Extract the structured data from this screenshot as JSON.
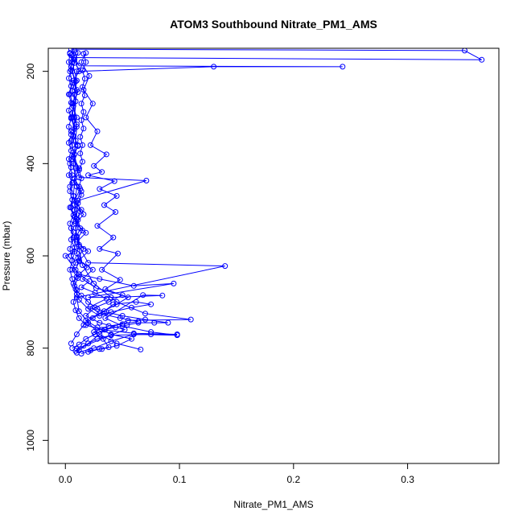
{
  "chart_data": {
    "type": "scatter",
    "title": "ATOM3 Southbound Nitrate_PM1_AMS",
    "xlabel": "Nitrate_PM1_AMS",
    "ylabel": "Pressure (mbar)",
    "xlim": [
      -0.015,
      0.38
    ],
    "ylim": [
      1050,
      150
    ],
    "y_axis_reversed": true,
    "x_ticks": [
      0.0,
      0.1,
      0.2,
      0.3
    ],
    "x_tick_labels": [
      "0.0",
      "0.1",
      "0.2",
      "0.3"
    ],
    "y_ticks": [
      200,
      400,
      600,
      800,
      1000
    ],
    "y_tick_labels": [
      "200",
      "400",
      "600",
      "800",
      "1000"
    ],
    "grid": false,
    "legend": "none",
    "color": "#0000ff",
    "marker": "open-circle",
    "connected": true,
    "series": [
      {
        "points": [
          [
            0.012,
            805
          ],
          [
            0.02,
            790
          ],
          [
            0.035,
            760
          ],
          [
            0.055,
            740
          ],
          [
            0.11,
            738
          ],
          [
            0.07,
            725
          ],
          [
            0.045,
            700
          ],
          [
            0.025,
            660
          ],
          [
            0.015,
            620
          ],
          [
            0.01,
            560
          ],
          [
            0.008,
            500
          ],
          [
            0.01,
            450
          ],
          [
            0.007,
            400
          ],
          [
            0.009,
            350
          ],
          [
            0.006,
            300
          ],
          [
            0.008,
            250
          ],
          [
            0.01,
            200
          ],
          [
            0.13,
            190
          ],
          [
            0.243,
            190
          ],
          [
            0.012,
            188
          ],
          [
            0.008,
            170
          ],
          [
            0.365,
            175
          ],
          [
            0.35,
            155
          ],
          [
            0.005,
            152
          ]
        ]
      },
      {
        "points": [
          [
            0.066,
            803
          ],
          [
            0.045,
            790
          ],
          [
            0.03,
            770
          ],
          [
            0.02,
            745
          ],
          [
            0.012,
            720
          ],
          [
            0.01,
            690
          ],
          [
            0.14,
            622
          ],
          [
            0.02,
            615
          ],
          [
            0.012,
            580
          ],
          [
            0.009,
            540
          ],
          [
            0.011,
            480
          ],
          [
            0.071,
            437
          ],
          [
            0.012,
            430
          ],
          [
            0.008,
            380
          ],
          [
            0.01,
            320
          ],
          [
            0.007,
            270
          ],
          [
            0.01,
            220
          ],
          [
            0.006,
            180
          ],
          [
            0.009,
            160
          ]
        ]
      },
      {
        "points": [
          [
            0.01,
            810
          ],
          [
            0.025,
            800
          ],
          [
            0.04,
            785
          ],
          [
            0.06,
            770
          ],
          [
            0.098,
            772
          ],
          [
            0.075,
            765
          ],
          [
            0.05,
            752
          ],
          [
            0.035,
            735
          ],
          [
            0.068,
            685
          ],
          [
            0.085,
            686
          ],
          [
            0.04,
            690
          ],
          [
            0.02,
            690
          ],
          [
            0.095,
            660
          ],
          [
            0.06,
            665
          ],
          [
            0.03,
            650
          ],
          [
            0.012,
            640
          ],
          [
            0.0,
            600
          ],
          [
            0.008,
            590
          ],
          [
            0.01,
            520
          ],
          [
            0.007,
            470
          ],
          [
            0.009,
            410
          ],
          [
            0.006,
            360
          ],
          [
            0.008,
            300
          ],
          [
            0.01,
            240
          ],
          [
            0.005,
            190
          ],
          [
            0.008,
            155
          ]
        ]
      },
      {
        "points": [
          [
            0.014,
            812
          ],
          [
            0.022,
            805
          ],
          [
            0.032,
            802
          ],
          [
            0.045,
            795
          ],
          [
            0.058,
            780
          ],
          [
            0.04,
            770
          ],
          [
            0.028,
            755
          ],
          [
            0.018,
            740
          ],
          [
            0.045,
            705
          ],
          [
            0.055,
            690
          ],
          [
            0.035,
            672
          ],
          [
            0.048,
            652
          ],
          [
            0.032,
            630
          ],
          [
            0.046,
            595
          ],
          [
            0.03,
            585
          ],
          [
            0.042,
            560
          ],
          [
            0.028,
            535
          ],
          [
            0.044,
            505
          ],
          [
            0.034,
            490
          ],
          [
            0.045,
            470
          ],
          [
            0.03,
            455
          ],
          [
            0.043,
            438
          ],
          [
            0.02,
            425
          ],
          [
            0.032,
            418
          ],
          [
            0.025,
            405
          ],
          [
            0.036,
            380
          ],
          [
            0.022,
            360
          ],
          [
            0.028,
            330
          ],
          [
            0.018,
            300
          ],
          [
            0.024,
            270
          ],
          [
            0.016,
            240
          ],
          [
            0.021,
            210
          ],
          [
            0.014,
            180
          ],
          [
            0.018,
            160
          ]
        ]
      },
      {
        "points": [
          [
            0.009,
            806
          ],
          [
            0.016,
            795
          ],
          [
            0.028,
            780
          ],
          [
            0.04,
            772
          ],
          [
            0.052,
            760
          ],
          [
            0.03,
            745
          ],
          [
            0.018,
            730
          ],
          [
            0.026,
            712
          ],
          [
            0.038,
            700
          ],
          [
            0.05,
            685
          ],
          [
            0.027,
            670
          ],
          [
            0.015,
            650
          ],
          [
            0.024,
            630
          ],
          [
            0.012,
            610
          ],
          [
            0.02,
            590
          ],
          [
            0.01,
            570
          ],
          [
            0.018,
            550
          ],
          [
            0.009,
            530
          ],
          [
            0.016,
            510
          ],
          [
            0.008,
            490
          ],
          [
            0.014,
            460
          ],
          [
            0.007,
            440
          ],
          [
            0.012,
            410
          ],
          [
            0.006,
            390
          ],
          [
            0.011,
            360
          ],
          [
            0.005,
            330
          ],
          [
            0.01,
            300
          ],
          [
            0.006,
            270
          ],
          [
            0.011,
            245
          ],
          [
            0.007,
            220
          ],
          [
            0.012,
            200
          ],
          [
            0.008,
            175
          ],
          [
            0.011,
            160
          ]
        ]
      },
      {
        "points": [
          [
            0.005,
            790
          ],
          [
            0.01,
            770
          ],
          [
            0.016,
            750
          ],
          [
            0.024,
            735
          ],
          [
            0.034,
            720
          ],
          [
            0.042,
            705
          ],
          [
            0.062,
            700
          ],
          [
            0.075,
            705
          ],
          [
            0.058,
            712
          ],
          [
            0.04,
            722
          ],
          [
            0.03,
            730
          ],
          [
            0.02,
            715
          ],
          [
            0.012,
            695
          ],
          [
            0.009,
            672
          ],
          [
            0.006,
            650
          ],
          [
            0.004,
            630
          ],
          [
            0.006,
            610
          ],
          [
            0.004,
            585
          ],
          [
            0.007,
            560
          ],
          [
            0.005,
            540
          ],
          [
            0.008,
            515
          ],
          [
            0.005,
            495
          ],
          [
            0.007,
            470
          ],
          [
            0.004,
            450
          ],
          [
            0.006,
            425
          ],
          [
            0.004,
            400
          ],
          [
            0.007,
            375
          ],
          [
            0.005,
            350
          ],
          [
            0.008,
            325
          ],
          [
            0.005,
            300
          ],
          [
            0.007,
            275
          ],
          [
            0.004,
            250
          ],
          [
            0.006,
            225
          ],
          [
            0.004,
            200
          ],
          [
            0.006,
            180
          ],
          [
            0.004,
            160
          ]
        ]
      },
      {
        "points": [
          [
            0.02,
            808
          ],
          [
            0.03,
            802
          ],
          [
            0.038,
            798
          ],
          [
            0.033,
            780
          ],
          [
            0.025,
            765
          ],
          [
            0.038,
            752
          ],
          [
            0.05,
            748
          ],
          [
            0.064,
            742
          ],
          [
            0.048,
            735
          ],
          [
            0.03,
            725
          ],
          [
            0.022,
            710
          ],
          [
            0.036,
            693
          ],
          [
            0.026,
            680
          ],
          [
            0.014,
            668
          ],
          [
            0.021,
            655
          ],
          [
            0.012,
            640
          ],
          [
            0.019,
            625
          ],
          [
            0.011,
            605
          ],
          [
            0.016,
            585
          ],
          [
            0.01,
            565
          ],
          [
            0.015,
            545
          ],
          [
            0.009,
            525
          ],
          [
            0.014,
            500
          ],
          [
            0.008,
            480
          ],
          [
            0.013,
            455
          ],
          [
            0.008,
            432
          ],
          [
            0.012,
            410
          ],
          [
            0.007,
            385
          ],
          [
            0.011,
            362
          ],
          [
            0.007,
            340
          ],
          [
            0.01,
            315
          ],
          [
            0.006,
            290
          ],
          [
            0.009,
            265
          ],
          [
            0.006,
            243
          ],
          [
            0.009,
            222
          ],
          [
            0.006,
            200
          ],
          [
            0.008,
            182
          ],
          [
            0.005,
            165
          ]
        ]
      },
      {
        "points": [
          [
            0.006,
            800
          ],
          [
            0.012,
            792
          ],
          [
            0.018,
            780
          ],
          [
            0.026,
            770
          ],
          [
            0.034,
            760
          ],
          [
            0.044,
            755
          ],
          [
            0.054,
            750
          ],
          [
            0.064,
            745
          ],
          [
            0.078,
            745
          ],
          [
            0.09,
            745
          ],
          [
            0.07,
            738
          ],
          [
            0.05,
            730
          ],
          [
            0.036,
            722
          ],
          [
            0.028,
            715
          ],
          [
            0.02,
            700
          ],
          [
            0.014,
            686
          ],
          [
            0.01,
            675
          ],
          [
            0.007,
            660
          ],
          [
            0.01,
            645
          ],
          [
            0.006,
            630
          ],
          [
            0.009,
            615
          ],
          [
            0.005,
            600
          ],
          [
            0.008,
            582
          ],
          [
            0.005,
            565
          ],
          [
            0.007,
            548
          ],
          [
            0.004,
            530
          ],
          [
            0.007,
            512
          ],
          [
            0.004,
            495
          ],
          [
            0.006,
            478
          ],
          [
            0.004,
            460
          ],
          [
            0.006,
            442
          ],
          [
            0.003,
            425
          ],
          [
            0.005,
            408
          ],
          [
            0.003,
            390
          ],
          [
            0.005,
            372
          ],
          [
            0.003,
            355
          ],
          [
            0.005,
            337
          ],
          [
            0.003,
            320
          ],
          [
            0.005,
            302
          ],
          [
            0.003,
            285
          ],
          [
            0.005,
            268
          ],
          [
            0.003,
            250
          ],
          [
            0.005,
            232
          ],
          [
            0.003,
            215
          ],
          [
            0.005,
            197
          ],
          [
            0.003,
            180
          ],
          [
            0.004,
            162
          ]
        ]
      },
      {
        "points": [
          [
            0.01,
            802
          ],
          [
            0.04,
            772
          ],
          [
            0.075,
            770
          ],
          [
            0.098,
            770
          ],
          [
            0.06,
            768
          ],
          [
            0.032,
            760
          ],
          [
            0.018,
            750
          ],
          [
            0.012,
            735
          ],
          [
            0.009,
            718
          ],
          [
            0.007,
            700
          ],
          [
            0.01,
            683
          ],
          [
            0.008,
            665
          ],
          [
            0.011,
            648
          ],
          [
            0.009,
            630
          ],
          [
            0.012,
            612
          ],
          [
            0.01,
            594
          ],
          [
            0.012,
            576
          ],
          [
            0.01,
            558
          ],
          [
            0.013,
            540
          ],
          [
            0.011,
            522
          ],
          [
            0.013,
            504
          ],
          [
            0.011,
            486
          ],
          [
            0.014,
            468
          ],
          [
            0.012,
            450
          ],
          [
            0.014,
            432
          ],
          [
            0.012,
            414
          ],
          [
            0.015,
            396
          ],
          [
            0.013,
            378
          ],
          [
            0.015,
            360
          ],
          [
            0.013,
            342
          ],
          [
            0.016,
            324
          ],
          [
            0.014,
            306
          ],
          [
            0.016,
            288
          ],
          [
            0.014,
            270
          ],
          [
            0.017,
            252
          ],
          [
            0.015,
            234
          ],
          [
            0.017,
            216
          ],
          [
            0.015,
            198
          ],
          [
            0.018,
            180
          ],
          [
            0.016,
            162
          ]
        ]
      }
    ]
  }
}
